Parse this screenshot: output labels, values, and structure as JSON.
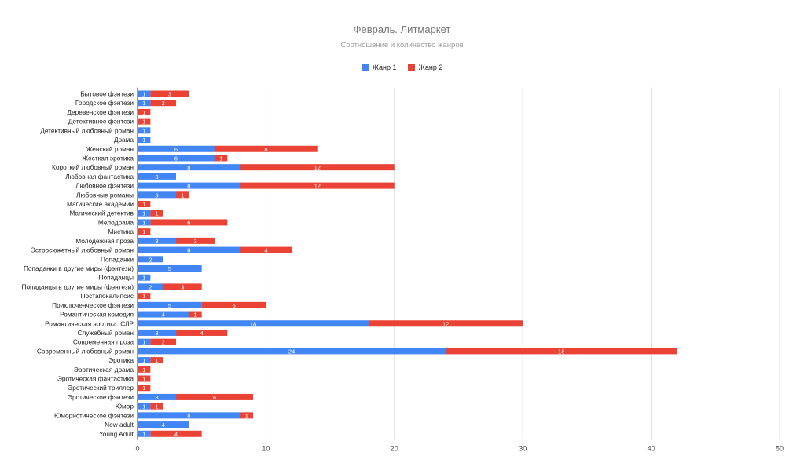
{
  "chart_data": {
    "type": "bar",
    "orientation": "horizontal",
    "stacked": true,
    "title": "Февраль. Литмаркет",
    "subtitle": "Соотношение и количество жанров",
    "legend_position": "top",
    "grid": true,
    "xlim": [
      0,
      50
    ],
    "xticks": [
      0,
      10,
      20,
      30,
      40,
      50
    ],
    "categories": [
      "Бытовое фэнтези",
      "Городское фэнтези",
      "Деревенское фэнтези",
      "Детективное фэнтези",
      "Детективный любовный роман",
      "Драма",
      "Женский роман",
      "Жесткая эротика",
      "Короткий любовный роман",
      "Любовная фантастика",
      "Любовное фэнтези",
      "Любовные романы",
      "Магические академии",
      "Магический детектив",
      "Мелодрама",
      "Мистика",
      "Молодежная проза",
      "Остросюжетный любовный роман",
      "Попаданки",
      "Попаданки в другие миры (фэнтези)",
      "Попаданцы",
      "Попаданцы в другие миры (фэнтези)",
      "Постапокалипсис",
      "Приключенческое фэнтези",
      "Романтическая комедия",
      "Романтическая эротика. СЛР",
      "Служебный роман",
      "Современная проза",
      "Современный любовный роман",
      "Эротика",
      "Эротическая драма",
      "Эротическая фантастика",
      "Эротический триллер",
      "Эротическое фэнтези",
      "Юмор",
      "Юмористическое фэнтези",
      "New adult",
      "Young Adult"
    ],
    "series": [
      {
        "name": "Жанр 1",
        "color": "#4285f4",
        "values": [
          1,
          1,
          0,
          0,
          1,
          1,
          6,
          6,
          8,
          3,
          8,
          3,
          0,
          1,
          1,
          0,
          3,
          8,
          2,
          5,
          1,
          2,
          0,
          5,
          4,
          18,
          3,
          1,
          24,
          1,
          0,
          0,
          0,
          3,
          1,
          8,
          4,
          1
        ]
      },
      {
        "name": "Жанр 2",
        "color": "#ea4335",
        "values": [
          3,
          2,
          1,
          1,
          0,
          0,
          8,
          1,
          12,
          0,
          12,
          1,
          1,
          1,
          6,
          1,
          3,
          4,
          0,
          0,
          0,
          3,
          1,
          5,
          1,
          12,
          4,
          2,
          18,
          1,
          1,
          1,
          1,
          6,
          1,
          1,
          0,
          4
        ]
      }
    ]
  }
}
